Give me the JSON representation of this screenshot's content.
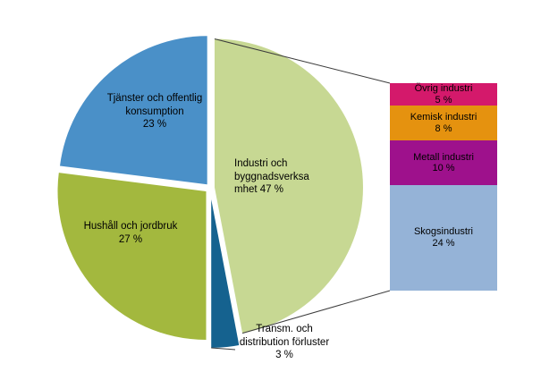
{
  "chart_data": {
    "type": "pie",
    "title": "",
    "unit": "%",
    "labels_on_chart": true,
    "legend_position": "none",
    "slices": [
      {
        "id": "industri",
        "label": "Industri och byggnadsverksamhet",
        "value": 47,
        "color": "#c7d893"
      },
      {
        "id": "transm",
        "label": "Transm. och distribution förluster",
        "value": 3,
        "color": "#15628f"
      },
      {
        "id": "hushall",
        "label": "Hushåll och jordbruk",
        "value": 27,
        "color": "#a3b83e"
      },
      {
        "id": "tjanster",
        "label": "Tjänster och offentlig konsumption",
        "value": 23,
        "color": "#4a90c8"
      }
    ],
    "breakdown_bar": {
      "parent_slice": "Industri och byggnadsverksamhet",
      "type": "stacked-bar",
      "segments": [
        {
          "id": "ovrig",
          "label": "Övrig industri",
          "value": 5,
          "color": "#d4196b"
        },
        {
          "id": "kemisk",
          "label": "Kemisk industri",
          "value": 8,
          "color": "#e5920f"
        },
        {
          "id": "metall",
          "label": "Metall industri",
          "value": 10,
          "color": "#9e118c"
        },
        {
          "id": "skogs",
          "label": "Skogsindustri",
          "value": 24,
          "color": "#95b3d7"
        }
      ]
    }
  },
  "pie_labels": {
    "tjanster": {
      "line1": "Tjänster och offentlig",
      "line2": "konsumption",
      "line3": "23 %"
    },
    "hushall": {
      "line1": "Hushåll och jordbruk",
      "line2": "27 %"
    },
    "industri": {
      "line1": "Industri och",
      "line2": "byggnadsverksa",
      "line3": "mhet 47 %"
    },
    "transm": {
      "line1": "Transm. och",
      "line2": "distribution förluster",
      "line3": "3 %"
    }
  },
  "bar_labels": [
    {
      "name": "Övrig industri",
      "pct": "5 %"
    },
    {
      "name": "Kemisk industri",
      "pct": "8 %"
    },
    {
      "name": "Metall industri",
      "pct": "10 %"
    },
    {
      "name": "Skogsindustri",
      "pct": "24 %"
    }
  ]
}
